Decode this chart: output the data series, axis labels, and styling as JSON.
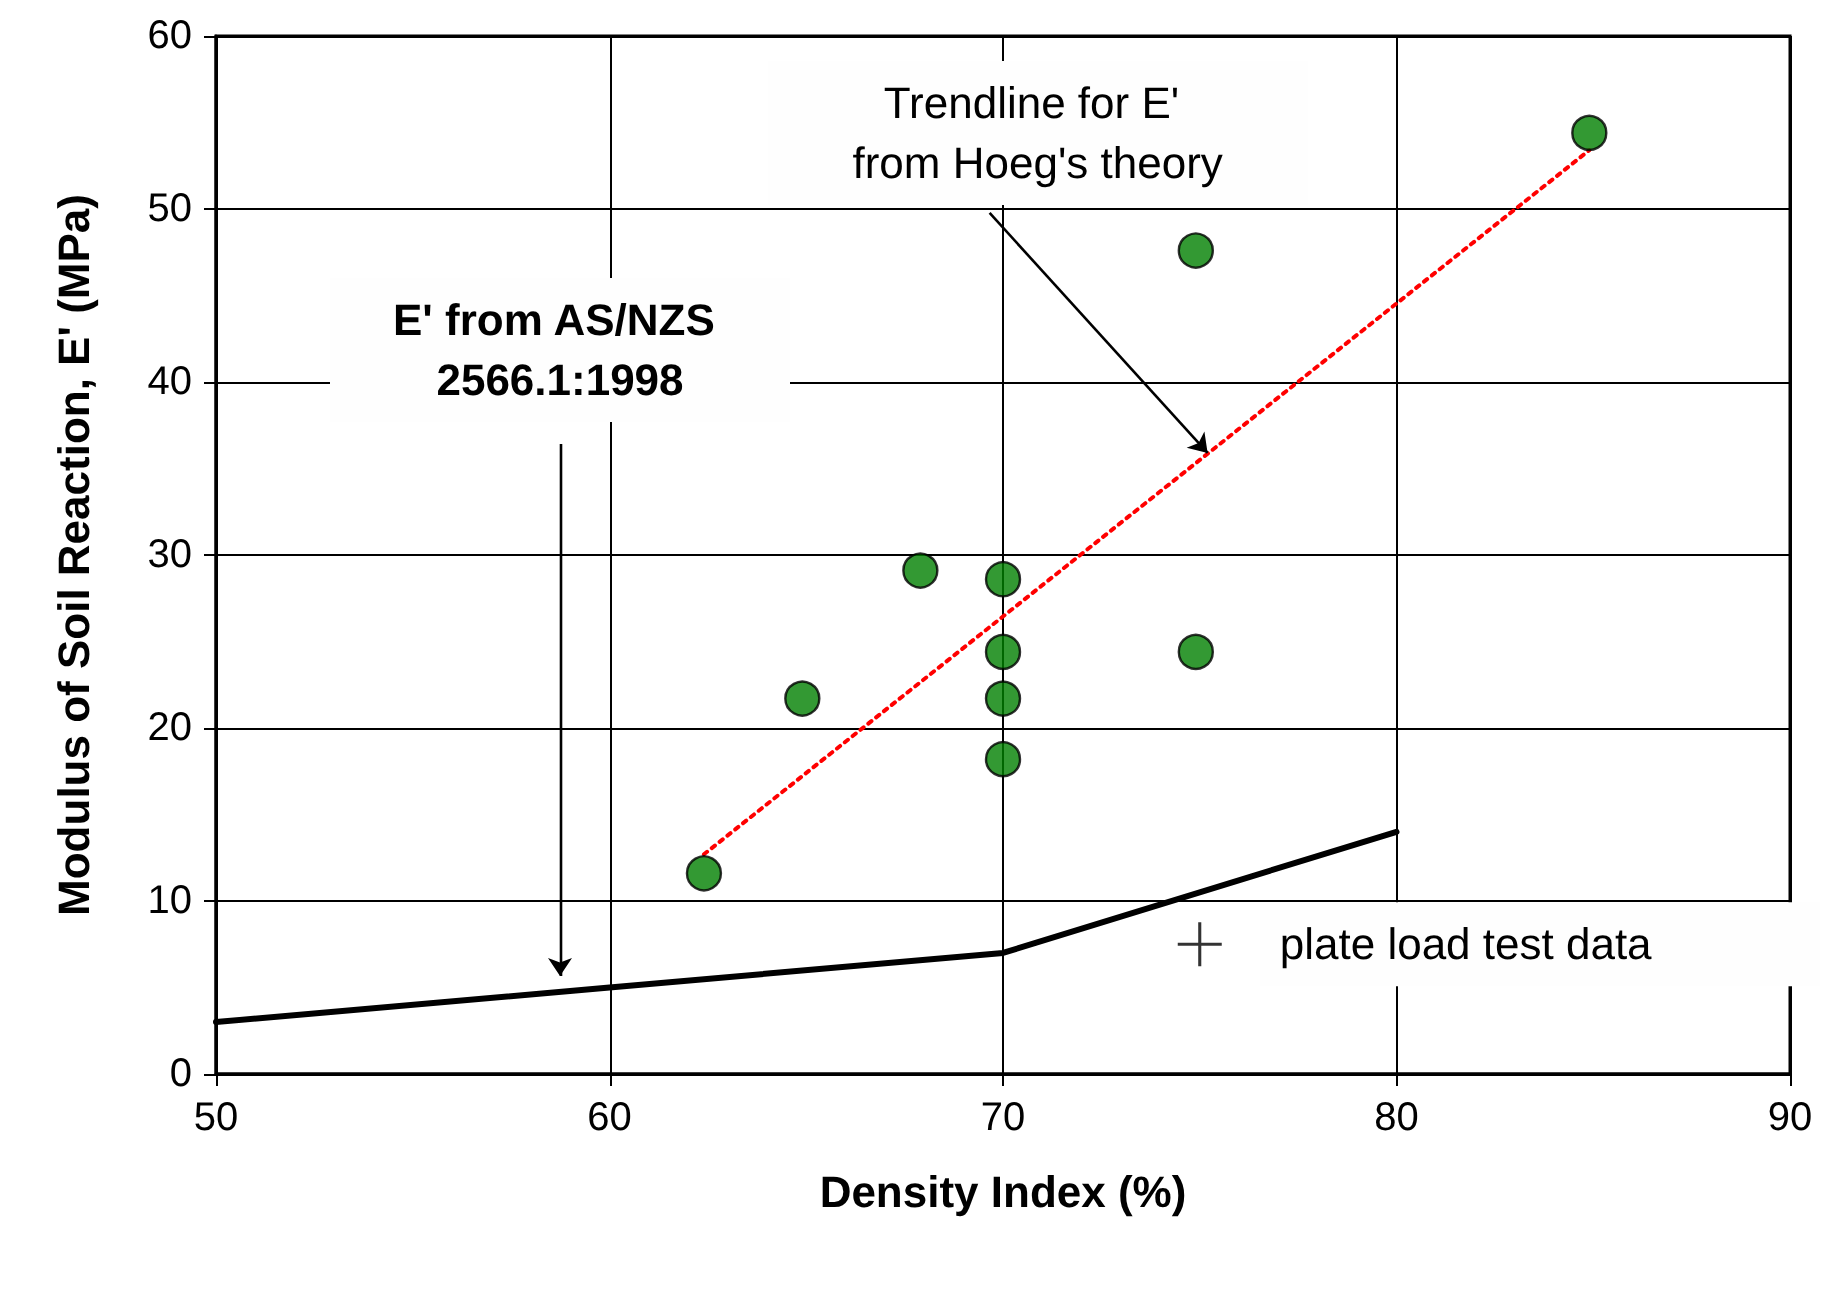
{
  "chart_data": {
    "type": "scatter",
    "xlabel": "Density Index (%)",
    "ylabel": "Modulus of Soil Reaction, E' (MPa)",
    "xlim": [
      50,
      90
    ],
    "xticks": [
      50,
      60,
      70,
      80,
      90
    ],
    "ylim": [
      0,
      60
    ],
    "yticks": [
      0,
      10,
      20,
      30,
      40,
      50,
      60
    ],
    "grid": true,
    "series": [
      {
        "color": "#008000",
        "marker": "circle",
        "x": [
          62.4,
          64.9,
          67.9,
          70,
          70,
          70,
          70,
          74.9,
          74.9,
          84.9
        ],
        "values": [
          11.6,
          21.7,
          29.1,
          28.6,
          24.4,
          21.7,
          18.2,
          47.6,
          24.4,
          54.4
        ]
      },
      {
        "type": "line",
        "color": "#ff0000",
        "marker": "none",
        "line_style": "dotted",
        "x": [
          62.4,
          84.9
        ],
        "values": [
          12.7,
          53.4
        ]
      },
      {
        "type": "line",
        "color": "#000000",
        "marker": "none",
        "line_style": "solid",
        "x": [
          50,
          60,
          70,
          80
        ],
        "values": [
          3,
          5,
          7,
          14
        ]
      },
      {
        "type": "scatter",
        "color": "#000000",
        "marker": "cross",
        "x": [
          75
        ],
        "values": [
          7.5
        ]
      }
    ],
    "annotations": [
      "E' from AS/NZS 2566.1:1998",
      {
        "text": "Trendline for E' from Hoeg's theory",
        "x": 75.2,
        "y": 35.9
      },
      {
        "text": "plate load test data",
        "x": 75,
        "y": 7.5
      }
    ]
  }
}
